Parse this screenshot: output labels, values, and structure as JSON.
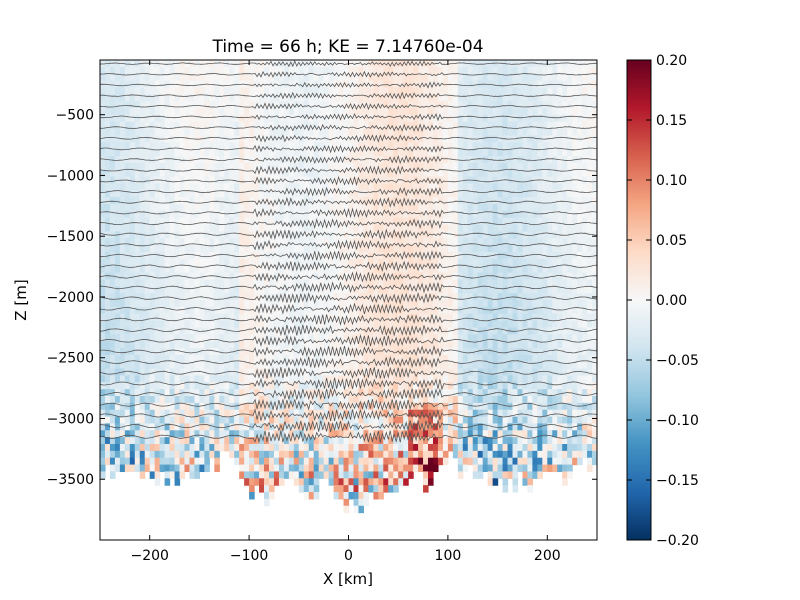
{
  "chart_data": {
    "type": "heatmap",
    "title": "Time = 66 h; KE = 7.14760e-04",
    "xlabel": "X [km]",
    "ylabel": "Z [m]",
    "xlim": [
      -250,
      250
    ],
    "ylim": [
      -4000,
      -50
    ],
    "xticks": [
      -200,
      -100,
      0,
      100,
      200
    ],
    "yticks": [
      -3500,
      -3000,
      -2500,
      -2000,
      -1500,
      -1000,
      -500
    ],
    "colorbar": {
      "cmap": "RdBu_r",
      "vmin": -0.2,
      "vmax": 0.2,
      "ticks": [
        "0.20",
        "0.15",
        "0.10",
        "0.05",
        "0.00",
        "-0.05",
        "-0.10",
        "-0.15",
        "-0.20"
      ],
      "colors": [
        "#053061",
        "#2166ac",
        "#4393c3",
        "#92c5de",
        "#d1e5f0",
        "#f7f7f7",
        "#fddbc7",
        "#f4a582",
        "#d6604d",
        "#b2182b",
        "#67001f"
      ]
    },
    "contours": {
      "color": "#555555",
      "count": 36,
      "z_top": -80,
      "z_bottom": -3150
    },
    "bottom_depth_profile": {
      "x": [
        -250,
        -200,
        -150,
        -120,
        -100,
        -80,
        -60,
        -40,
        -20,
        0,
        20,
        40,
        60,
        80,
        100,
        120,
        150,
        200,
        250
      ],
      "z": [
        -3400,
        -3500,
        -3450,
        -3300,
        -3650,
        -3600,
        -3500,
        -3650,
        -3550,
        -3750,
        -3700,
        -3600,
        -3450,
        -3500,
        -3300,
        -3450,
        -3550,
        -3500,
        -3350
      ]
    }
  }
}
